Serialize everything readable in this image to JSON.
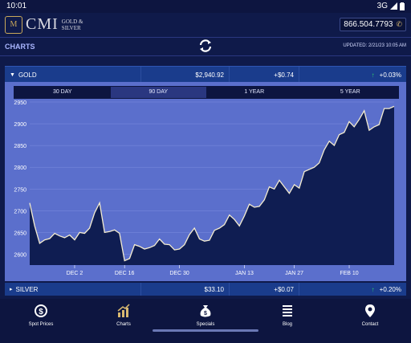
{
  "status": {
    "time": "10:01",
    "network": "3G"
  },
  "header": {
    "logo_text": "CMI",
    "logo_sub1": "GOLD &",
    "logo_sub2": "SILVER",
    "phone": "866.504.7793"
  },
  "subheader": {
    "title": "CHARTS",
    "updated": "UPDATED: 2/21/23 10:05 AM"
  },
  "gold": {
    "name": "GOLD",
    "price": "$2,940.92",
    "change": "+$0.74",
    "percent": "+0.03%"
  },
  "silver": {
    "name": "SILVER",
    "price": "$33.10",
    "change": "+$0.07",
    "percent": "+0.20%"
  },
  "tabs": [
    {
      "label": "30 DAY",
      "active": false
    },
    {
      "label": "90 DAY",
      "active": true
    },
    {
      "label": "1 YEAR",
      "active": false
    },
    {
      "label": "5 YEAR",
      "active": false
    }
  ],
  "nav": [
    {
      "label": "Spot Prices",
      "icon": "dollar-coin-icon"
    },
    {
      "label": "Charts",
      "icon": "bar-chart-icon"
    },
    {
      "label": "Specials",
      "icon": "money-bag-icon"
    },
    {
      "label": "Blog",
      "icon": "document-icon"
    },
    {
      "label": "Contact",
      "icon": "location-pin-icon"
    }
  ],
  "colors": {
    "accent": "#2fd36a",
    "panel": "#5b6fcc",
    "fill": "#0f1d52",
    "line": "#f4ecd0",
    "row": "#1a3c8c"
  },
  "chart_data": {
    "type": "area",
    "title": "",
    "ylim": [
      2575,
      2950
    ],
    "yticks": [
      2600,
      2650,
      2700,
      2750,
      2800,
      2850,
      2900,
      2950
    ],
    "xtick_labels": [
      "DEC 2",
      "DEC 16",
      "DEC 30",
      "JAN 13",
      "JAN 27",
      "FEB 10"
    ],
    "xtick_index": [
      9,
      19,
      30,
      43,
      53,
      64
    ],
    "series": [
      {
        "values": [
          2718,
          2665,
          2625,
          2633,
          2636,
          2648,
          2642,
          2638,
          2644,
          2633,
          2650,
          2648,
          2660,
          2695,
          2718,
          2650,
          2652,
          2656,
          2648,
          2585,
          2590,
          2622,
          2618,
          2612,
          2615,
          2620,
          2635,
          2623,
          2622,
          2610,
          2612,
          2622,
          2645,
          2660,
          2635,
          2630,
          2632,
          2655,
          2660,
          2668,
          2690,
          2680,
          2665,
          2688,
          2715,
          2708,
          2710,
          2725,
          2755,
          2750,
          2770,
          2755,
          2740,
          2760,
          2752,
          2790,
          2795,
          2800,
          2810,
          2840,
          2860,
          2850,
          2875,
          2880,
          2905,
          2893,
          2910,
          2930,
          2885,
          2893,
          2898,
          2935,
          2935,
          2940
        ]
      }
    ]
  }
}
